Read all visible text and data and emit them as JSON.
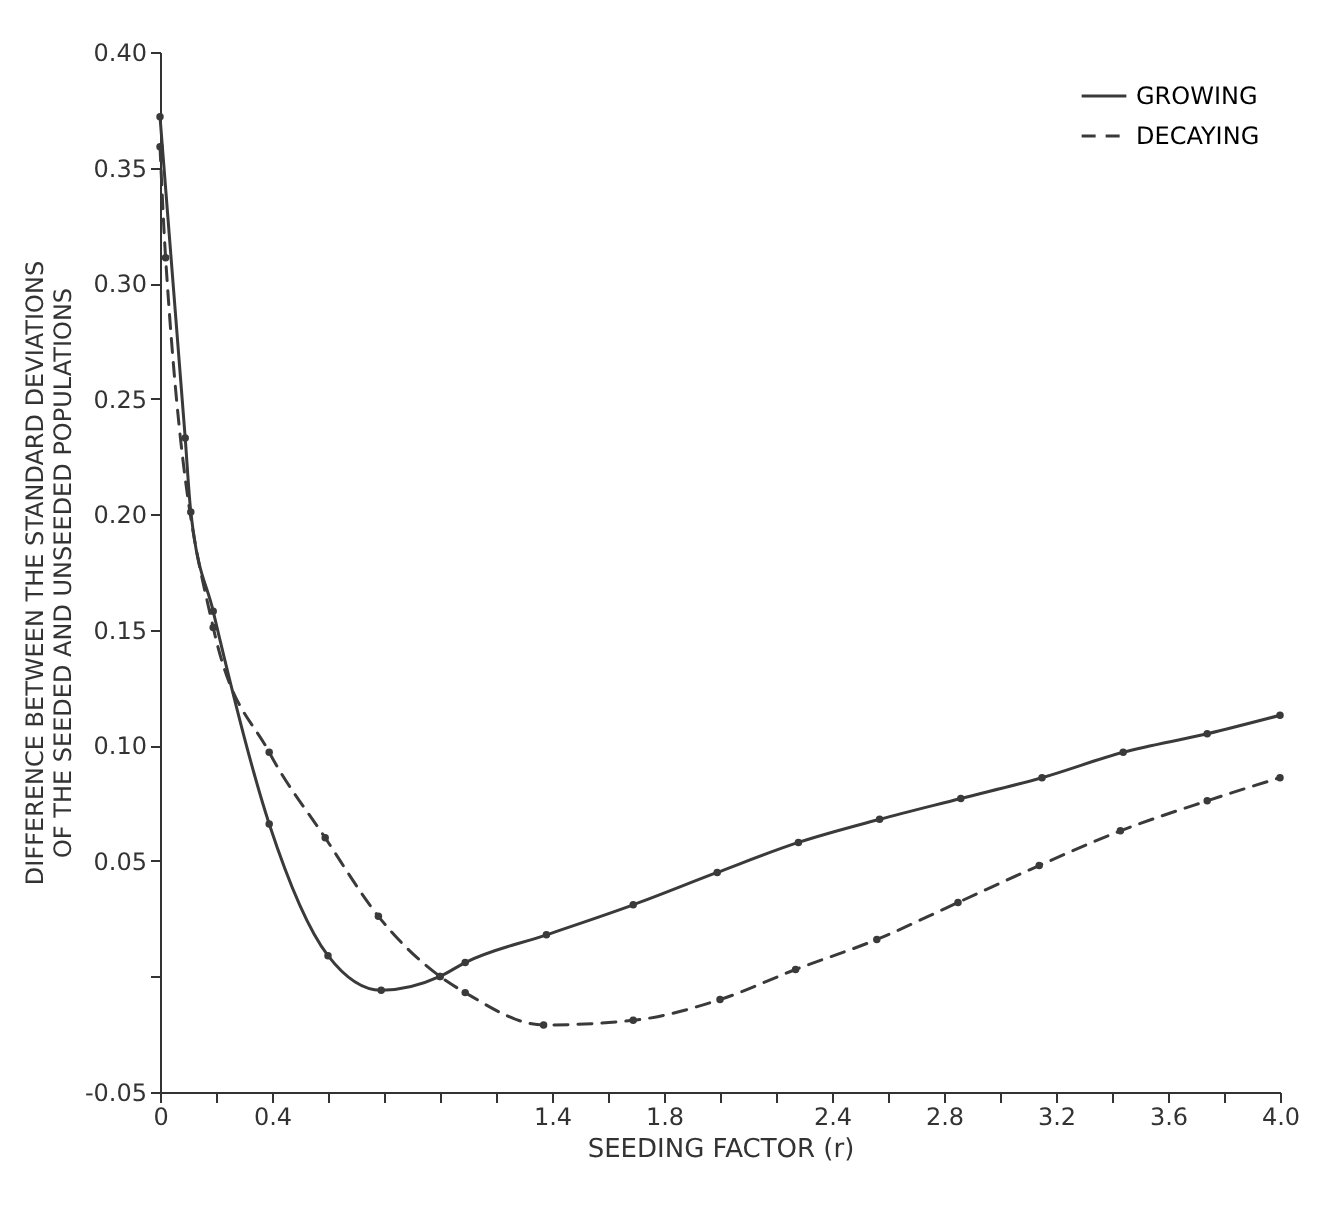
{
  "chart_data": {
    "type": "line",
    "xlabel": "SEEDING FACTOR  (r)",
    "ylabel": "DIFFERENCE BETWEEN THE STANDARD DEVIATIONS\nOF THE SEEDED AND UNSEEDED POPULATIONS",
    "series": [
      {
        "name": "GROWING",
        "color": "#3a3a3a",
        "line_style": "solid",
        "x": [
          0,
          0.09,
          0.11,
          0.19,
          0.39,
          0.6,
          0.79,
          1.0,
          1.09,
          1.38,
          1.69,
          1.99,
          2.28,
          2.57,
          2.86,
          3.15,
          3.44,
          3.74,
          4.0
        ],
        "values": [
          0.372,
          0.233,
          0.201,
          0.158,
          0.066,
          0.009,
          -0.006,
          0,
          0.006,
          0.018,
          0.031,
          0.045,
          0.058,
          0.068,
          0.077,
          0.086,
          0.097,
          0.105,
          0.113
        ]
      },
      {
        "name": "DECAYING",
        "color": "#3a3a3a",
        "line_style": "dashed",
        "x": [
          0,
          0.02,
          0.19,
          0.39,
          0.59,
          0.78,
          1.0,
          1.09,
          1.37,
          1.69,
          2.0,
          2.27,
          2.56,
          2.85,
          3.14,
          3.43,
          3.74,
          4.0
        ],
        "values": [
          0.359,
          0.311,
          0.151,
          0.097,
          0.06,
          0.026,
          0,
          -0.007,
          -0.021,
          -0.019,
          -0.01,
          0.003,
          0.016,
          0.032,
          0.048,
          0.063,
          0.076,
          0.086
        ]
      }
    ],
    "xlim": [
      0,
      4.0
    ],
    "xticks": [
      0,
      {
        "value": 0.2,
        "label": null
      },
      0.4,
      {
        "value": 0.6,
        "label": null
      },
      {
        "value": 0.8,
        "label": null
      },
      {
        "value": 1.0,
        "label": null
      },
      {
        "value": 1.2,
        "label": null
      },
      1.4,
      {
        "value": 1.6,
        "label": null
      },
      1.8,
      {
        "value": 2.0,
        "label": null
      },
      {
        "value": 2.2,
        "label": null
      },
      2.4,
      {
        "value": 2.6,
        "label": null
      },
      2.8,
      {
        "value": 3.0,
        "label": null
      },
      3.2,
      {
        "value": 3.4,
        "label": null
      },
      3.6,
      {
        "value": 3.8,
        "label": null
      },
      {
        "value": 4.0,
        "label": "4.0"
      }
    ],
    "ylim": [
      -0.05,
      0.4
    ],
    "yticks": [
      -0.05,
      {
        "value": 0,
        "label": null
      },
      0.05,
      {
        "value": 0.1,
        "label": "0.10"
      },
      0.15,
      {
        "value": 0.2,
        "label": "0.20"
      },
      0.25,
      {
        "value": 0.3,
        "label": "0.30"
      },
      0.35,
      {
        "value": 0.4,
        "label": "0.40"
      }
    ],
    "grid": false,
    "legend": "top right",
    "marker": "circle"
  }
}
